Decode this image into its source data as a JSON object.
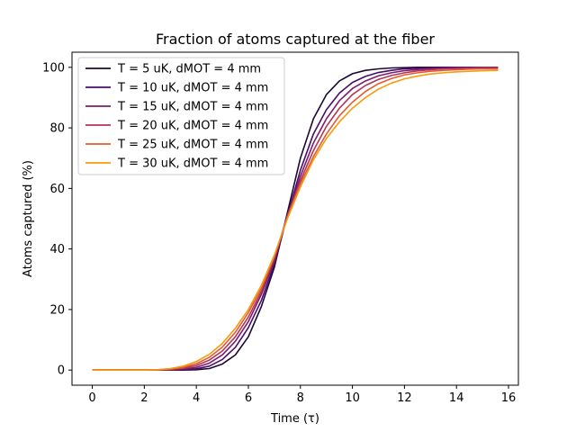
{
  "chart_data": {
    "type": "line",
    "title": "Fraction of atoms captured at the fiber",
    "xlabel": "Time (τ)",
    "ylabel": "Atoms captured (%)",
    "xlim": [
      -0.78,
      16.38
    ],
    "ylim": [
      -5,
      105
    ],
    "xticks": [
      0,
      2,
      4,
      6,
      8,
      10,
      12,
      14,
      16
    ],
    "yticks": [
      0,
      20,
      40,
      60,
      80,
      100
    ],
    "legend_position": "upper-left",
    "grid": false,
    "x": [
      0,
      0.5,
      1,
      1.5,
      2,
      2.5,
      3,
      3.5,
      4,
      4.5,
      5,
      5.5,
      6,
      6.5,
      7,
      7.5,
      8,
      8.5,
      9,
      9.5,
      10,
      10.5,
      11,
      11.5,
      12,
      12.5,
      13,
      13.5,
      14,
      14.5,
      15,
      15.6
    ],
    "series": [
      {
        "name": "T = 5 uK, dMOT = 4 mm",
        "color": "#1a0a33",
        "values": [
          0,
          0,
          0,
          0,
          0,
          0,
          0,
          0,
          0.1,
          0.5,
          2,
          5,
          11,
          21,
          34,
          52,
          70,
          83,
          91,
          95.5,
          97.9,
          99,
          99.5,
          99.8,
          99.9,
          100,
          100,
          100,
          100,
          100,
          100,
          100
        ]
      },
      {
        "name": "T = 10 uK, dMOT = 4 mm",
        "color": "#4a0c6b",
        "values": [
          0,
          0,
          0,
          0,
          0,
          0,
          0,
          0.1,
          0.4,
          1.3,
          3.5,
          7.5,
          14,
          23,
          35,
          51,
          66,
          78,
          86,
          91.5,
          95,
          97,
          98.3,
          99,
          99.5,
          99.7,
          99.8,
          99.9,
          100,
          100,
          100,
          100
        ]
      },
      {
        "name": "T = 15 uK, dMOT = 4 mm",
        "color": "#7a1d6d",
        "values": [
          0,
          0,
          0,
          0,
          0,
          0,
          0.1,
          0.3,
          0.9,
          2.3,
          5,
          9.5,
          16,
          25,
          36,
          51,
          64,
          75,
          83,
          89,
          93,
          95.5,
          97.2,
          98.2,
          98.9,
          99.3,
          99.6,
          99.7,
          99.8,
          99.9,
          100,
          100
        ]
      },
      {
        "name": "T = 20 uK, dMOT = 4 mm",
        "color": "#b23456",
        "values": [
          0,
          0,
          0,
          0,
          0,
          0,
          0.2,
          0.6,
          1.5,
          3.3,
          6.3,
          11,
          17.5,
          26,
          37,
          51,
          62.5,
          72.5,
          80.5,
          86.5,
          91,
          94,
          96,
          97.3,
          98.2,
          98.8,
          99.2,
          99.5,
          99.6,
          99.7,
          99.8,
          99.8
        ]
      },
      {
        "name": "T = 25 uK, dMOT = 4 mm",
        "color": "#e15b30",
        "values": [
          0,
          0,
          0,
          0,
          0,
          0.1,
          0.3,
          0.9,
          2.1,
          4.2,
          7.6,
          12.5,
          19,
          27,
          37.5,
          50.5,
          61.5,
          70.5,
          78,
          84,
          88.5,
          92,
          94.6,
          96.3,
          97.5,
          98.2,
          98.7,
          99,
          99.2,
          99.4,
          99.5,
          99.5
        ]
      },
      {
        "name": "T = 30 uK, dMOT = 4 mm",
        "color": "#f89a0c",
        "values": [
          0,
          0,
          0,
          0,
          0,
          0.1,
          0.5,
          1.3,
          2.8,
          5.2,
          8.8,
          13.8,
          20,
          28,
          38,
          50,
          60.5,
          69.5,
          76.5,
          82,
          86.5,
          90,
          92.8,
          94.8,
          96.2,
          97.1,
          97.8,
          98.2,
          98.5,
          98.7,
          98.9,
          99
        ]
      }
    ]
  }
}
